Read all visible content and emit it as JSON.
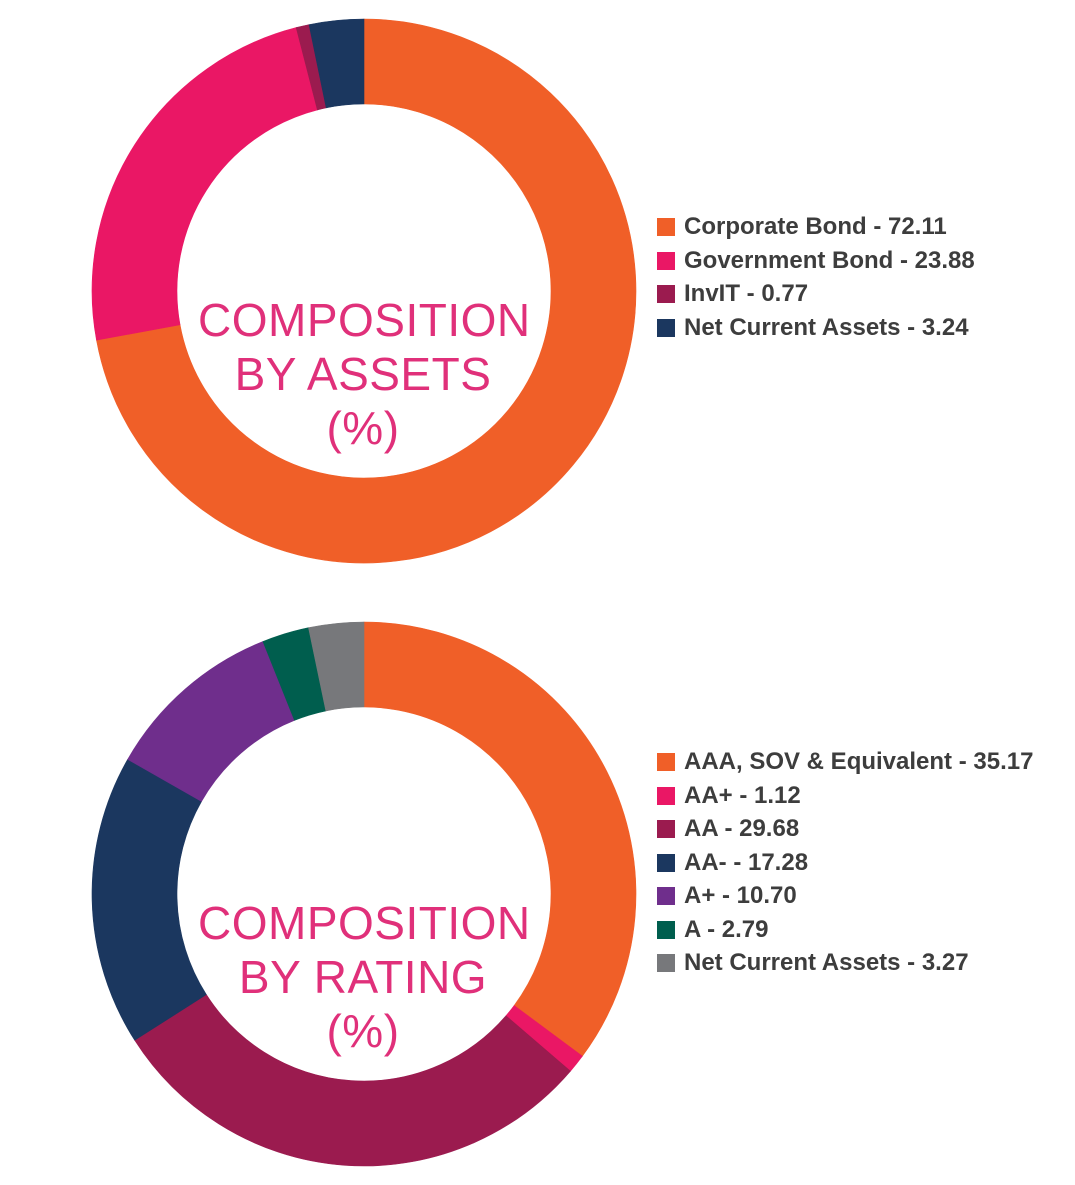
{
  "chart_data": [
    {
      "type": "pie",
      "style": "donut",
      "title": "COMPOSITION BY ASSETS (%)",
      "title_lines": [
        "COMPOSITION",
        "BY ASSETS",
        "(%)"
      ],
      "categories": [
        "Corporate Bond",
        "Government Bond",
        "InvIT",
        "Net Current Assets"
      ],
      "values": [
        72.11,
        23.88,
        0.77,
        3.24
      ],
      "colors": [
        "#f05f28",
        "#ea1765",
        "#9b1b4f",
        "#1b375f"
      ],
      "legend_labels": [
        "Corporate Bond - 72.11",
        "Government Bond - 23.88",
        "InvIT - 0.77",
        "Net Current Assets - 3.24"
      ],
      "legend": "right"
    },
    {
      "type": "pie",
      "style": "donut",
      "title": "COMPOSITION BY RATING (%)",
      "title_lines": [
        "COMPOSITION",
        "BY RATING",
        "(%)"
      ],
      "categories": [
        "AAA, SOV & Equivalent",
        "AA+",
        "AA",
        "AA-",
        "A+",
        "A",
        "Net Current Assets"
      ],
      "values": [
        35.17,
        1.12,
        29.68,
        17.28,
        10.7,
        2.79,
        3.27
      ],
      "colors": [
        "#f05f28",
        "#ea1765",
        "#9b1b4f",
        "#1b375f",
        "#6f2e8c",
        "#005e4e",
        "#77787b"
      ],
      "legend_labels": [
        "AAA, SOV & Equivalent - 35.17",
        "AA+ - 1.12",
        "AA - 29.68",
        "AA- - 17.28",
        "A+ - 10.70",
        "A - 2.79",
        "Net Current Assets - 3.27"
      ],
      "legend": "right"
    }
  ]
}
